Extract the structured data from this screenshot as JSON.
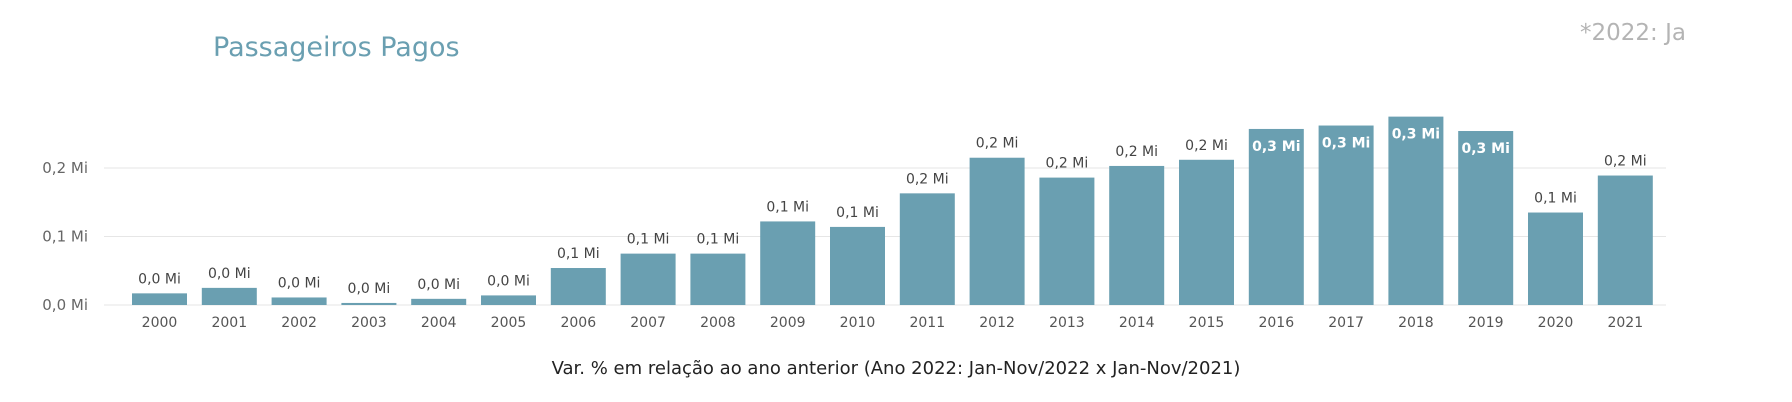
{
  "title": "Passageiros Pagos",
  "note": "*2022: Ja",
  "footer": "Var. % em relação ao ano anterior (Ano 2022: Jan-Nov/2022 x Jan-Nov/2021)",
  "colors": {
    "bar": "#6a9fb1",
    "title": "#6a9fb1"
  },
  "chart_data": {
    "type": "bar",
    "title": "Passageiros Pagos",
    "categories": [
      "2000",
      "2001",
      "2002",
      "2003",
      "2004",
      "2005",
      "2006",
      "2007",
      "2008",
      "2009",
      "2010",
      "2011",
      "2012",
      "2013",
      "2014",
      "2015",
      "2016",
      "2017",
      "2018",
      "2019",
      "2020",
      "2021"
    ],
    "values": [
      0.017,
      0.025,
      0.011,
      0.003,
      0.009,
      0.014,
      0.054,
      0.075,
      0.075,
      0.122,
      0.114,
      0.163,
      0.215,
      0.186,
      0.203,
      0.212,
      0.257,
      0.262,
      0.275,
      0.254,
      0.135,
      0.189
    ],
    "labels": [
      "0,0 Mi",
      "0,0 Mi",
      "0,0 Mi",
      "0,0 Mi",
      "0,0 Mi",
      "0,0 Mi",
      "0,1 Mi",
      "0,1 Mi",
      "0,1 Mi",
      "0,1 Mi",
      "0,1 Mi",
      "0,2 Mi",
      "0,2 Mi",
      "0,2 Mi",
      "0,2 Mi",
      "0,2 Mi",
      "0,3 Mi",
      "0,3 Mi",
      "0,3 Mi",
      "0,3 Mi",
      "0,1 Mi",
      "0,2 Mi"
    ],
    "yticks": [
      {
        "v": 0,
        "label": "0,0 Mi"
      },
      {
        "v": 0.1,
        "label": "0,1 Mi"
      },
      {
        "v": 0.2,
        "label": "0,2 Mi"
      }
    ],
    "unit": "Mi (millions)",
    "ylim": [
      0,
      0.3
    ],
    "grid": true
  }
}
